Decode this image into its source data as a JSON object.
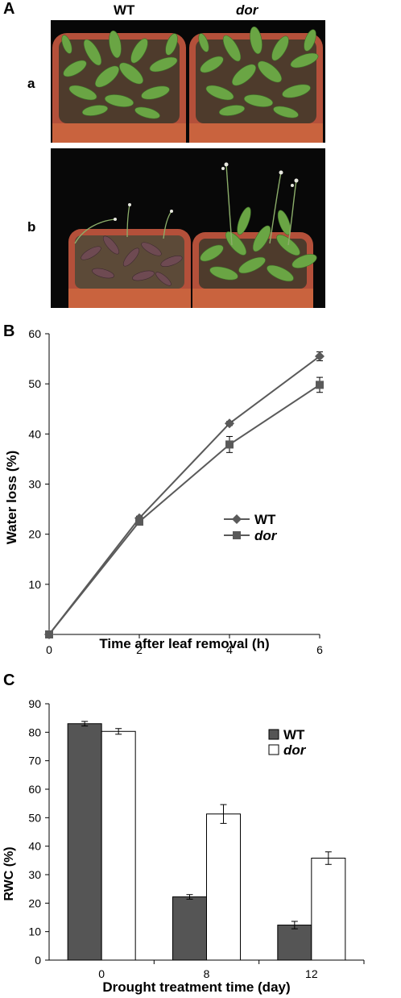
{
  "panel_a": {
    "label": "A",
    "col_wt": "WT",
    "col_dor": "dor",
    "row_a": "a",
    "row_b": "b"
  },
  "colors": {
    "wt_series": "#5a5a5a",
    "pot": "#c25a3a",
    "leaf": "#5f9a3c",
    "dry_leaf": "#6e4a52"
  },
  "chart_data": [
    {
      "panel": "B",
      "type": "line",
      "title": "",
      "xlabel": "Time after leaf removal (h)",
      "ylabel": "Water loss (%)",
      "xlim": [
        0,
        6
      ],
      "ylim": [
        0,
        60
      ],
      "xticks": [
        0,
        2,
        4,
        6
      ],
      "yticks": [
        10,
        20,
        30,
        40,
        50,
        60
      ],
      "x": [
        0,
        2,
        4,
        6
      ],
      "legend_position": "center-right",
      "series": [
        {
          "name": "WT",
          "marker": "diamond",
          "values": [
            0,
            23.2,
            42.1,
            55.5
          ],
          "errors": [
            0,
            0.4,
            0.4,
            0.9
          ]
        },
        {
          "name": "dor",
          "marker": "square",
          "values": [
            0,
            22.5,
            37.9,
            49.8
          ],
          "errors": [
            0,
            0.4,
            1.6,
            1.5
          ]
        }
      ]
    },
    {
      "panel": "C",
      "type": "bar",
      "title": "",
      "xlabel": "Drought treatment time (day)",
      "ylabel": "RWC (%)",
      "ylim": [
        0,
        90
      ],
      "yticks": [
        0,
        10,
        20,
        30,
        40,
        50,
        60,
        70,
        80,
        90
      ],
      "categories": [
        "0",
        "8",
        "12"
      ],
      "legend_position": "top-right",
      "series": [
        {
          "name": "WT",
          "fill": "#555555",
          "values": [
            83,
            22.2,
            12.3
          ],
          "errors": [
            0.8,
            0.8,
            1.3
          ]
        },
        {
          "name": "dor",
          "fill": "#ffffff",
          "values": [
            80.3,
            51.3,
            35.8
          ],
          "errors": [
            1.0,
            3.3,
            2.2
          ]
        }
      ]
    }
  ]
}
